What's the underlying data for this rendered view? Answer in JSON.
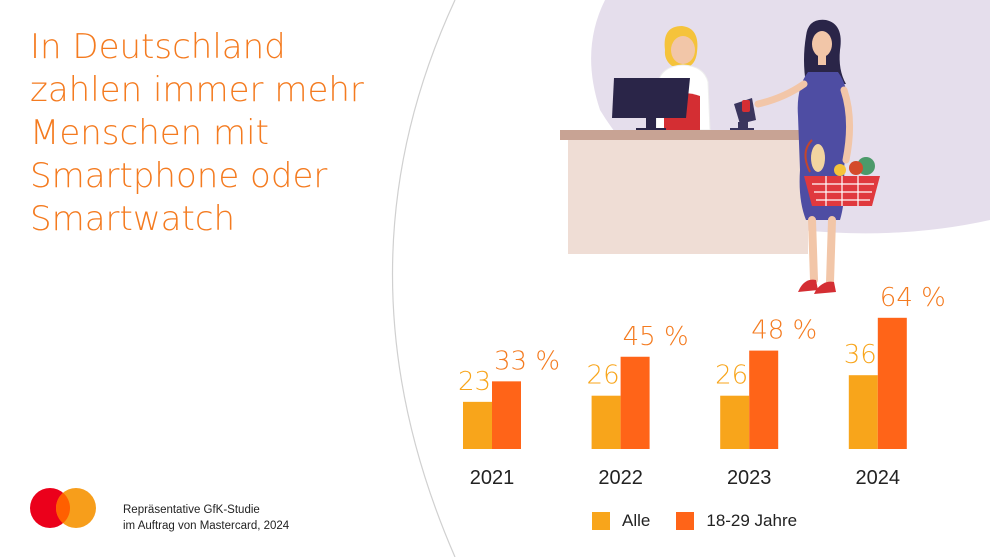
{
  "title_lines": [
    "In Deutschland",
    "zahlen immer mehr",
    "Menschen mit",
    "Smartphone oder",
    "Smartwatch"
  ],
  "colors": {
    "title": "#F47B20",
    "alle": "#F8A51B",
    "jung": "#FF6418",
    "alle_label": "#F8A51B",
    "jung_label": "#F47B20",
    "circle_fill": "#E5DEEC",
    "counter": "#EFDDD5",
    "counter_top": "#C8A394",
    "logo_red": "#EB001B",
    "logo_orange": "#F79E1B",
    "logo_overlap": "#FF5F00"
  },
  "source": {
    "line1": "Repräsentative GfK-Studie",
    "line2": "im Auftrag von Mastercard, 2024"
  },
  "chart_data": {
    "type": "bar",
    "categories": [
      "2021",
      "2022",
      "2023",
      "2024"
    ],
    "series": [
      {
        "name": "Alle",
        "values": [
          23,
          26,
          26,
          36
        ],
        "labels": [
          "23",
          "26",
          "26",
          "36"
        ]
      },
      {
        "name": "18-29 Jahre",
        "values": [
          33,
          45,
          48,
          64
        ],
        "labels": [
          "33 %",
          "45 %",
          "48 %",
          "64 %"
        ]
      }
    ],
    "unit": "%",
    "title": "",
    "xlabel": "",
    "ylabel": "",
    "ylim": [
      0,
      70
    ],
    "grid": false,
    "legend_position": "bottom"
  }
}
